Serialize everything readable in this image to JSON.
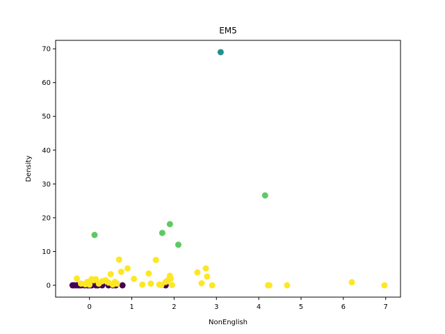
{
  "chart_data": {
    "type": "scatter",
    "title": "EM5",
    "xlabel": "NonEnglish",
    "ylabel": "Density",
    "xlim": [
      -0.8,
      7.35
    ],
    "ylim": [
      -3.5,
      72.5
    ],
    "xticks": [
      0,
      1,
      2,
      3,
      4,
      5,
      6,
      7
    ],
    "yticks": [
      0,
      10,
      20,
      30,
      40,
      50,
      60,
      70
    ],
    "grid": false,
    "colors": {
      "purple": "#440154",
      "teal": "#21918c",
      "green": "#5ec962",
      "yellow": "#fde725"
    },
    "series": [
      {
        "color": "purple",
        "points": [
          [
            -0.4,
            0
          ],
          [
            -0.36,
            0
          ],
          [
            -0.3,
            0
          ],
          [
            -0.25,
            0
          ],
          [
            -0.2,
            0
          ],
          [
            -0.12,
            0
          ],
          [
            -0.05,
            0
          ],
          [
            0.0,
            0
          ],
          [
            0.05,
            0
          ],
          [
            0.15,
            0
          ],
          [
            0.2,
            0
          ],
          [
            0.27,
            0.3
          ],
          [
            0.3,
            0
          ],
          [
            0.45,
            0
          ],
          [
            0.55,
            0
          ],
          [
            0.62,
            0
          ],
          [
            0.78,
            0
          ],
          [
            1.8,
            0
          ]
        ]
      },
      {
        "color": "teal",
        "points": [
          [
            3.1,
            69
          ]
        ]
      },
      {
        "color": "green",
        "points": [
          [
            0.12,
            14.9
          ],
          [
            1.72,
            15.5
          ],
          [
            1.9,
            18.1
          ],
          [
            2.1,
            12.0
          ],
          [
            4.15,
            26.6
          ]
        ]
      },
      {
        "color": "yellow",
        "points": [
          [
            -0.3,
            2.0
          ],
          [
            -0.2,
            0.5
          ],
          [
            -0.1,
            0.3
          ],
          [
            -0.05,
            1.0
          ],
          [
            0.0,
            0.2
          ],
          [
            0.05,
            1.8
          ],
          [
            0.1,
            1.5
          ],
          [
            0.15,
            1.8
          ],
          [
            0.22,
            0.5
          ],
          [
            0.3,
            1.2
          ],
          [
            0.38,
            1.5
          ],
          [
            0.45,
            0.8
          ],
          [
            0.5,
            3.3
          ],
          [
            0.55,
            0.2
          ],
          [
            0.6,
            1.0
          ],
          [
            0.65,
            0.5
          ],
          [
            0.7,
            7.6
          ],
          [
            0.75,
            4.0
          ],
          [
            0.9,
            5.0
          ],
          [
            1.05,
            1.9
          ],
          [
            1.25,
            0.2
          ],
          [
            1.4,
            3.5
          ],
          [
            1.45,
            0.5
          ],
          [
            1.57,
            7.5
          ],
          [
            1.65,
            0.2
          ],
          [
            1.7,
            0.1
          ],
          [
            1.8,
            1.0
          ],
          [
            1.85,
            1.5
          ],
          [
            1.9,
            2.8
          ],
          [
            1.92,
            2.0
          ],
          [
            1.95,
            0.1
          ],
          [
            2.55,
            3.8
          ],
          [
            2.65,
            0.6
          ],
          [
            2.75,
            5.0
          ],
          [
            2.78,
            2.6
          ],
          [
            2.9,
            0.0
          ],
          [
            4.22,
            0.0
          ],
          [
            4.25,
            0.0
          ],
          [
            4.67,
            0.0
          ],
          [
            6.2,
            0.9
          ],
          [
            6.97,
            0.0
          ]
        ]
      }
    ]
  }
}
